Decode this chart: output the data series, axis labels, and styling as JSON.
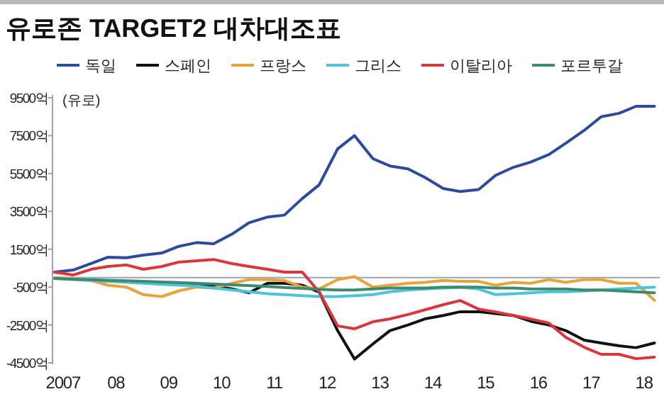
{
  "chart_data": {
    "type": "line",
    "title": "유로존 TARGET2 대차대조표",
    "ylabel": "(유로)",
    "x": [
      2006.84,
      2007.19,
      2007.53,
      2007.85,
      2008.2,
      2008.52,
      2008.87,
      2009.19,
      2009.53,
      2009.85,
      2010.2,
      2010.52,
      2010.87,
      2011.19,
      2011.53,
      2011.85,
      2012.2,
      2012.52,
      2012.87,
      2013.19,
      2013.53,
      2013.85,
      2014.2,
      2014.52,
      2014.87,
      2015.19,
      2015.53,
      2015.85,
      2016.2,
      2016.52,
      2016.87,
      2017.19,
      2017.53,
      2017.85,
      2018.2
    ],
    "series": [
      {
        "name": "독일",
        "color": "#2e4a9e",
        "values": [
          290,
          400,
          750,
          1080,
          1050,
          1190,
          1300,
          1650,
          1850,
          1790,
          2300,
          2900,
          3200,
          3300,
          4180,
          4900,
          6800,
          7500,
          6280,
          5900,
          5750,
          5300,
          4710,
          4550,
          4650,
          5400,
          5830,
          6100,
          6500,
          7100,
          7780,
          8500,
          8680,
          9050,
          9050
        ]
      },
      {
        "name": "스페인",
        "color": "#111111",
        "values": [
          null,
          null,
          null,
          null,
          null,
          null,
          null,
          -350,
          -400,
          -450,
          -600,
          -800,
          -300,
          -300,
          -400,
          -760,
          -2800,
          -4300,
          -3500,
          -2800,
          -2500,
          -2180,
          -2000,
          -1800,
          -1800,
          -1900,
          -2000,
          -2300,
          -2500,
          -2800,
          -3300,
          -3450,
          -3600,
          -3700,
          -3450
        ]
      },
      {
        "name": "프랑스",
        "color": "#e8a33d",
        "values": [
          0,
          -50,
          -150,
          -400,
          -500,
          -900,
          -1000,
          -700,
          -500,
          -550,
          -300,
          -100,
          -100,
          -150,
          -500,
          -600,
          -100,
          50,
          -500,
          -400,
          -300,
          -250,
          -150,
          -200,
          -200,
          -400,
          -250,
          -300,
          -100,
          -250,
          -100,
          -100,
          -300,
          -300,
          -1200
        ]
      },
      {
        "name": "그리스",
        "color": "#4ec3de",
        "values": [
          -50,
          -100,
          -150,
          -200,
          -250,
          -300,
          -350,
          -400,
          -450,
          -550,
          -650,
          -750,
          -850,
          -900,
          -950,
          -1000,
          -1000,
          -950,
          -900,
          -750,
          -650,
          -600,
          -550,
          -500,
          -600,
          -900,
          -850,
          -800,
          -750,
          -750,
          -700,
          -650,
          -600,
          -550,
          -500
        ]
      },
      {
        "name": "이탈리아",
        "color": "#d9363e",
        "values": [
          290,
          140,
          440,
          590,
          670,
          440,
          590,
          820,
          890,
          960,
          740,
          590,
          440,
          290,
          290,
          -760,
          -2550,
          -2700,
          -2330,
          -2180,
          -1950,
          -1700,
          -1430,
          -1210,
          -1660,
          -1810,
          -2000,
          -2180,
          -2400,
          -3150,
          -3680,
          -4050,
          -4050,
          -4280,
          -4200
        ]
      },
      {
        "name": "포르투갈",
        "color": "#3f8a6e",
        "values": [
          -50,
          -80,
          -110,
          -140,
          -170,
          -200,
          -230,
          -260,
          -300,
          -340,
          -380,
          -420,
          -470,
          -520,
          -570,
          -620,
          -650,
          -650,
          -600,
          -550,
          -550,
          -550,
          -500,
          -500,
          -500,
          -550,
          -550,
          -600,
          -600,
          -600,
          -650,
          -650,
          -700,
          -750,
          -800
        ]
      }
    ],
    "xlim": [
      2006.8,
      2018.3
    ],
    "xticks": [
      {
        "value": 2007,
        "label": "2007"
      },
      {
        "value": 2008,
        "label": "08"
      },
      {
        "value": 2009,
        "label": "09"
      },
      {
        "value": 2010,
        "label": "10"
      },
      {
        "value": 2011,
        "label": "11"
      },
      {
        "value": 2012,
        "label": "12"
      },
      {
        "value": 2013,
        "label": "13"
      },
      {
        "value": 2014,
        "label": "14"
      },
      {
        "value": 2015,
        "label": "15"
      },
      {
        "value": 2016,
        "label": "16"
      },
      {
        "value": 2017,
        "label": "17"
      },
      {
        "value": 2018,
        "label": "18"
      }
    ],
    "ylim": [
      -4500,
      9500
    ],
    "yticks": [
      {
        "value": 9500,
        "label": "9500억"
      },
      {
        "value": 7500,
        "label": "7500억"
      },
      {
        "value": 5500,
        "label": "5500억"
      },
      {
        "value": 3500,
        "label": "3500억"
      },
      {
        "value": 1500,
        "label": "1500억"
      },
      {
        "value": -500,
        "label": "-500억"
      },
      {
        "value": -2500,
        "label": "-2500억"
      },
      {
        "value": -4500,
        "label": "-4500억"
      }
    ],
    "ref_lines": [
      {
        "axis": "y",
        "value": 0,
        "color": "#9aa4b0"
      }
    ],
    "legend": "top",
    "grid": false,
    "marker": "none",
    "line_style": "solid"
  }
}
